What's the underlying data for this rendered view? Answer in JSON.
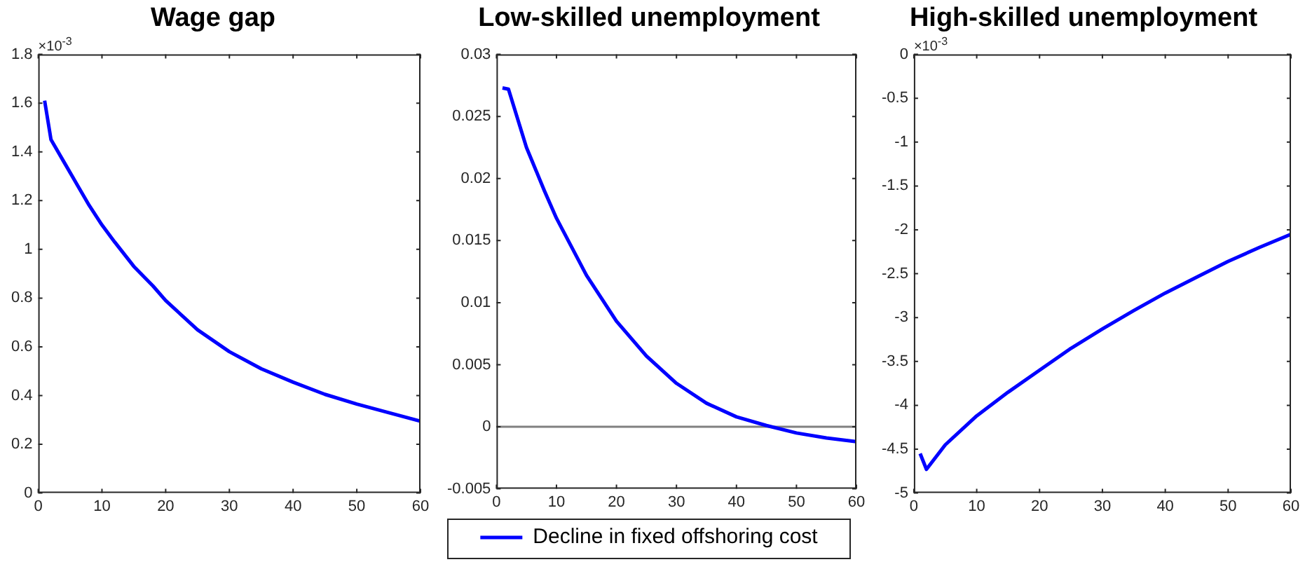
{
  "chart_data": [
    {
      "type": "line",
      "title": "Wage gap",
      "annotations": [
        "×10$^{-3}$"
      ],
      "xlim": [
        0,
        60
      ],
      "xticks": [
        0,
        10,
        20,
        30,
        40,
        50,
        60
      ],
      "ylim": [
        0,
        1.8
      ],
      "yticks": [
        0,
        0.2,
        0.4,
        0.6,
        0.8,
        1,
        1.2,
        1.4,
        1.6,
        1.8
      ],
      "grid": false,
      "series": [
        {
          "color": "#0000ff",
          "x": [
            1,
            2,
            4,
            6,
            8,
            10,
            12,
            15,
            18,
            20,
            25,
            30,
            35,
            40,
            45,
            50,
            55,
            60
          ],
          "values": [
            1.61,
            1.45,
            1.36,
            1.27,
            1.18,
            1.1,
            1.03,
            0.93,
            0.85,
            0.79,
            0.67,
            0.58,
            0.51,
            0.455,
            0.405,
            0.365,
            0.33,
            0.295
          ]
        }
      ]
    },
    {
      "type": "line",
      "title": "Low-skilled unemployment",
      "xlim": [
        0,
        60
      ],
      "xticks": [
        0,
        10,
        20,
        30,
        40,
        50,
        60
      ],
      "ylim": [
        -0.005,
        0.03
      ],
      "yticks": [
        -0.005,
        0,
        0.005,
        0.01,
        0.015,
        0.02,
        0.025,
        0.03
      ],
      "grid": false,
      "legend": "bottom",
      "ref_lines": [
        {
          "axis": "y",
          "value": 0,
          "color": "#808080"
        }
      ],
      "series": [
        {
          "name": "Decline in fixed offshoring cost",
          "color": "#0000ff",
          "x": [
            1,
            2,
            5,
            8,
            10,
            15,
            20,
            25,
            30,
            35,
            40,
            45,
            50,
            55,
            60
          ],
          "values": [
            0.0273,
            0.0272,
            0.0225,
            0.019,
            0.0168,
            0.0122,
            0.0085,
            0.0057,
            0.0035,
            0.0019,
            0.0008,
            0.0001,
            -0.0005,
            -0.0009,
            -0.0012
          ]
        }
      ]
    },
    {
      "type": "line",
      "title": "High-skilled unemployment",
      "annotations": [
        "×10$^{-3}$"
      ],
      "xlim": [
        0,
        60
      ],
      "xticks": [
        0,
        10,
        20,
        30,
        40,
        50,
        60
      ],
      "ylim": [
        -5,
        0
      ],
      "yticks": [
        -5,
        -4.5,
        -4,
        -3.5,
        -3,
        -2.5,
        -2,
        -1.5,
        -1,
        -0.5,
        0
      ],
      "grid": false,
      "series": [
        {
          "color": "#0000ff",
          "x": [
            1,
            2,
            5,
            10,
            15,
            20,
            25,
            30,
            35,
            40,
            45,
            50,
            55,
            60
          ],
          "values": [
            -4.55,
            -4.73,
            -4.45,
            -4.12,
            -3.85,
            -3.6,
            -3.35,
            -3.13,
            -2.92,
            -2.72,
            -2.54,
            -2.36,
            -2.2,
            -2.05
          ]
        }
      ]
    }
  ]
}
